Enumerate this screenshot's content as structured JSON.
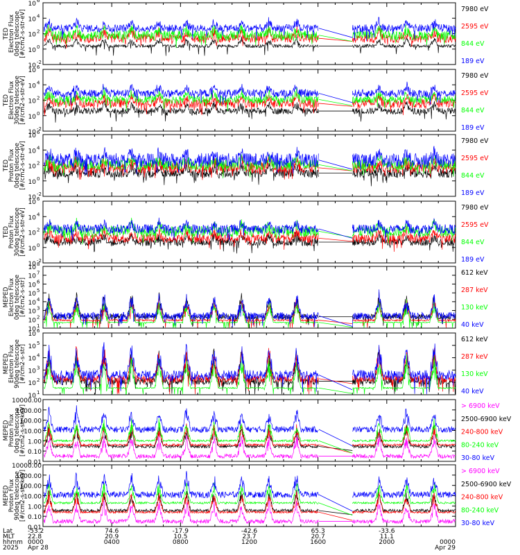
{
  "chart_data": [
    {
      "type": "line",
      "ylabel_lines": [
        "TED",
        "Electron Flux",
        "0deg telescope",
        "[#/cm2-s-str-eV]"
      ],
      "yscale": "log",
      "ylim_exp": [
        -2,
        6
      ],
      "y_ticks": [
        {
          "exp": 6,
          "base": "10",
          "sup": "6"
        },
        {
          "exp": 4,
          "base": "10",
          "sup": "4"
        },
        {
          "exp": 2,
          "base": "10",
          "sup": "2"
        },
        {
          "exp": 0,
          "base": "10",
          "sup": "0"
        },
        {
          "exp": -2,
          "base": "10",
          "sup": "-2"
        }
      ],
      "series": [
        {
          "name": "7980 eV",
          "color": "#000000",
          "level": [
            0.2,
            0.6
          ]
        },
        {
          "name": "2595 eV",
          "color": "#ff0000",
          "level": [
            0.8,
            2.0
          ]
        },
        {
          "name": "844 eV",
          "color": "#00ff00",
          "level": [
            1.2,
            2.4
          ]
        },
        {
          "name": "189 eV",
          "color": "#0000ff",
          "level": [
            2.2,
            3.2
          ]
        }
      ]
    },
    {
      "type": "line",
      "ylabel_lines": [
        "TED",
        "Electron Flux",
        "30deg telescope",
        "[#/cm2-s-str-eV]"
      ],
      "yscale": "log",
      "ylim_exp": [
        -2,
        6
      ],
      "y_ticks": [
        {
          "exp": 6,
          "base": "10",
          "sup": "6"
        },
        {
          "exp": 4,
          "base": "10",
          "sup": "4"
        },
        {
          "exp": 2,
          "base": "10",
          "sup": "2"
        },
        {
          "exp": 0,
          "base": "10",
          "sup": "0"
        },
        {
          "exp": -2,
          "base": "10",
          "sup": "-2"
        }
      ],
      "series": [
        {
          "name": "7980 eV",
          "color": "#000000",
          "level": [
            0.2,
            1.0
          ]
        },
        {
          "name": "2595 eV",
          "color": "#ff0000",
          "level": [
            1.0,
            2.2
          ]
        },
        {
          "name": "844 eV",
          "color": "#00ff00",
          "level": [
            1.6,
            2.6
          ]
        },
        {
          "name": "189 eV",
          "color": "#0000ff",
          "level": [
            2.4,
            3.4
          ]
        }
      ]
    },
    {
      "type": "line",
      "ylabel_lines": [
        "TED",
        "Proton Flux",
        "0deg telescope",
        "[#/cm2-s-str-eV]"
      ],
      "yscale": "log",
      "ylim_exp": [
        -2,
        6
      ],
      "y_ticks": [
        {
          "exp": 6,
          "base": "10",
          "sup": "6"
        },
        {
          "exp": 4,
          "base": "10",
          "sup": "4"
        },
        {
          "exp": 2,
          "base": "10",
          "sup": "2"
        },
        {
          "exp": 0,
          "base": "10",
          "sup": "0"
        },
        {
          "exp": -2,
          "base": "10",
          "sup": "-2"
        }
      ],
      "series": [
        {
          "name": "7980 eV",
          "color": "#000000",
          "level": [
            0.4,
            1.6
          ]
        },
        {
          "name": "2595 eV",
          "color": "#ff0000",
          "level": [
            1.0,
            2.4
          ]
        },
        {
          "name": "844 eV",
          "color": "#00ff00",
          "level": [
            1.4,
            2.8
          ]
        },
        {
          "name": "189 eV",
          "color": "#0000ff",
          "level": [
            1.8,
            3.6
          ]
        }
      ]
    },
    {
      "type": "line",
      "ylabel_lines": [
        "TED",
        "Proton Flux",
        "30deg telescope",
        "[#/cm2-s-str-eV]"
      ],
      "yscale": "log",
      "ylim_exp": [
        -2,
        6
      ],
      "y_ticks": [
        {
          "exp": 6,
          "base": "10",
          "sup": "6"
        },
        {
          "exp": 4,
          "base": "10",
          "sup": "4"
        },
        {
          "exp": 2,
          "base": "10",
          "sup": "2"
        },
        {
          "exp": 0,
          "base": "10",
          "sup": "0"
        },
        {
          "exp": -2,
          "base": "10",
          "sup": "-2"
        }
      ],
      "series": [
        {
          "name": "7980 eV",
          "color": "#000000",
          "level": [
            0.2,
            1.2
          ]
        },
        {
          "name": "2595 eV",
          "color": "#ff0000",
          "level": [
            0.6,
            1.8
          ]
        },
        {
          "name": "844 eV",
          "color": "#00ff00",
          "level": [
            1.4,
            2.8
          ]
        },
        {
          "name": "189 eV",
          "color": "#0000ff",
          "level": [
            1.8,
            3.0
          ]
        }
      ]
    },
    {
      "type": "line",
      "ylabel_lines": [
        "MEPED",
        "Electron Flux",
        "0deg telescope",
        "[#/cm2-s-str]"
      ],
      "yscale": "log",
      "ylim_exp": [
        1,
        8
      ],
      "y_ticks": [
        {
          "exp": 8,
          "base": "10",
          "sup": "8"
        },
        {
          "exp": 7,
          "base": "10",
          "sup": "7"
        },
        {
          "exp": 6,
          "base": "10",
          "sup": "6"
        },
        {
          "exp": 5,
          "base": "10",
          "sup": "5"
        },
        {
          "exp": 4,
          "base": "10",
          "sup": "4"
        },
        {
          "exp": 3,
          "base": "10",
          "sup": "3"
        },
        {
          "exp": 2,
          "base": "10",
          "sup": "2"
        },
        {
          "exp": 1,
          "base": "10",
          "sup": "1"
        }
      ],
      "series": [
        {
          "name": "612 keV",
          "color": "#000000",
          "level": [
            2.0,
            2.6
          ]
        },
        {
          "name": "287 keV",
          "color": "#ff0000",
          "level": [
            1.8,
            2.0
          ]
        },
        {
          "name": "130 keV",
          "color": "#00ff00",
          "level": [
            1.6,
            1.7
          ]
        },
        {
          "name": "40 keV",
          "color": "#0000ff",
          "level": [
            2.0,
            2.8
          ]
        }
      ]
    },
    {
      "type": "line",
      "ylabel_lines": [
        "MEPED",
        "Electron Flux",
        "90deg telescope",
        "[#/cm2-s-str]"
      ],
      "yscale": "log",
      "ylim_exp": [
        1,
        6
      ],
      "y_ticks": [
        {
          "exp": 6,
          "base": "10",
          "sup": "6"
        },
        {
          "exp": 5,
          "base": "10",
          "sup": "5"
        },
        {
          "exp": 4,
          "base": "10",
          "sup": "4"
        },
        {
          "exp": 3,
          "base": "10",
          "sup": "3"
        },
        {
          "exp": 2,
          "base": "10",
          "sup": "2"
        },
        {
          "exp": 1,
          "base": "10",
          "sup": "1"
        }
      ],
      "series": [
        {
          "name": "612 keV",
          "color": "#000000",
          "level": [
            1.8,
            2.4
          ]
        },
        {
          "name": "287 keV",
          "color": "#ff0000",
          "level": [
            2.0,
            2.6
          ]
        },
        {
          "name": "130 keV",
          "color": "#00ff00",
          "level": [
            1.5,
            1.6
          ]
        },
        {
          "name": "40 keV",
          "color": "#0000ff",
          "level": [
            2.2,
            3.0
          ]
        }
      ]
    },
    {
      "type": "line",
      "ylabel_lines": [
        "MEPED",
        "Proton Flux",
        "0deg telescope",
        "[#/cm2-s-str-keV]"
      ],
      "yscale": "log",
      "ylim_exp": [
        -2,
        4
      ],
      "y_ticks": [
        {
          "exp": 4,
          "label": "10000.00"
        },
        {
          "exp": 3,
          "label": "1000.00"
        },
        {
          "exp": 2,
          "label": "100.00"
        },
        {
          "exp": 1,
          "label": "10.00"
        },
        {
          "exp": 0,
          "label": "1.00"
        },
        {
          "exp": -1,
          "label": "0.10"
        },
        {
          "exp": -2,
          "label": "0.01"
        }
      ],
      "series": [
        {
          "name": "> 6900 keV",
          "color": "#ff00ff",
          "level": [
            -1.7,
            -1.3
          ]
        },
        {
          "name": "2500-6900 keV",
          "color": "#000000",
          "level": [
            -0.7,
            -0.4
          ]
        },
        {
          "name": "240-800 keV",
          "color": "#ff0000",
          "level": [
            -0.5,
            -0.3
          ]
        },
        {
          "name": "80-240 keV",
          "color": "#00ff00",
          "level": [
            -0.1,
            0.1
          ]
        },
        {
          "name": "30-80 keV",
          "color": "#0000ff",
          "level": [
            0.8,
            1.4
          ]
        }
      ]
    },
    {
      "type": "line",
      "ylabel_lines": [
        "MEPED",
        "Proton Flux",
        "90deg telescope",
        "[#/cm2-s-str-keV]"
      ],
      "yscale": "log",
      "ylim_exp": [
        -2,
        4
      ],
      "y_ticks": [
        {
          "exp": 4,
          "label": "10000.00"
        },
        {
          "exp": 3,
          "label": "1000.00"
        },
        {
          "exp": 2,
          "label": "100.00"
        },
        {
          "exp": 1,
          "label": "10.00"
        },
        {
          "exp": 0,
          "label": "1.00"
        },
        {
          "exp": -1,
          "label": "0.10"
        },
        {
          "exp": -2,
          "label": "0.01"
        }
      ],
      "series": [
        {
          "name": "> 6900 keV",
          "color": "#ff00ff",
          "level": [
            -1.7,
            -1.3
          ]
        },
        {
          "name": "2500-6900 keV",
          "color": "#000000",
          "level": [
            -0.6,
            -0.3
          ]
        },
        {
          "name": "240-800 keV",
          "color": "#ff0000",
          "level": [
            -0.7,
            -0.5
          ]
        },
        {
          "name": "80-240 keV",
          "color": "#00ff00",
          "level": [
            0.2,
            0.4
          ]
        },
        {
          "name": "30-80 keV",
          "color": "#0000ff",
          "level": [
            0.8,
            1.4
          ]
        }
      ]
    }
  ],
  "x_axis": {
    "row_labels": [
      "Lat",
      "MLT",
      "hhmm",
      "2025"
    ],
    "ticks": [
      {
        "hour": 0,
        "lat": "-53.2",
        "mlt": "22.8",
        "hhmm": "0000",
        "date": "Apr 28"
      },
      {
        "hour": 4,
        "lat": "74.6",
        "mlt": "20.9",
        "hhmm": "0400",
        "date": ""
      },
      {
        "hour": 8,
        "lat": "-17.9",
        "mlt": "10.5",
        "hhmm": "0800",
        "date": ""
      },
      {
        "hour": 12,
        "lat": "-42.6",
        "mlt": "23.7",
        "hhmm": "1200",
        "date": ""
      },
      {
        "hour": 16,
        "lat": "65.3",
        "mlt": "20.7",
        "hhmm": "1600",
        "date": ""
      },
      {
        "hour": 20,
        "lat": "-33.6",
        "mlt": "11.1",
        "hhmm": "2000",
        "date": ""
      },
      {
        "hour": 24,
        "lat": "",
        "mlt": "",
        "hhmm": "0000",
        "date": "Apr 29"
      }
    ],
    "range_hours": [
      0,
      24
    ],
    "data_gap_hours": [
      16.05,
      18.0
    ]
  }
}
